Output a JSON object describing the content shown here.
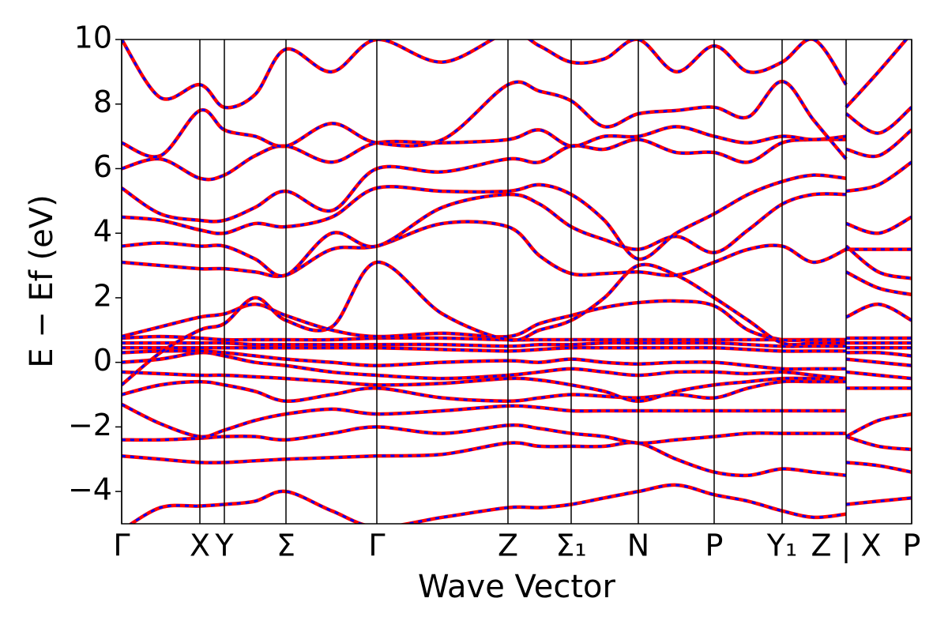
{
  "chart_data": {
    "type": "line",
    "xlabel": "Wave Vector",
    "ylabel": "E − Ef (eV)",
    "xlim": [
      0,
      1
    ],
    "ylim": [
      -5,
      10
    ],
    "yticks": [
      {
        "value": -4,
        "label": "−4"
      },
      {
        "value": -2,
        "label": "−2"
      },
      0,
      2,
      4,
      6,
      8,
      10
    ],
    "xticks": [
      {
        "value": 0,
        "label": "Γ"
      },
      {
        "value": 0.099,
        "label": "X"
      },
      {
        "value": 0.13,
        "label": "Y"
      },
      {
        "value": 0.208,
        "label": "Σ"
      },
      {
        "value": 0.323,
        "label": "Γ"
      },
      {
        "value": 0.489,
        "label": "Z"
      },
      {
        "value": 0.569,
        "label": "Σ₁"
      },
      {
        "value": 0.654,
        "label": "N"
      },
      {
        "value": 0.75,
        "label": "P"
      },
      {
        "value": 0.836,
        "label": "Y₁"
      },
      {
        "value": 0.917,
        "label": "Z | X"
      },
      {
        "value": 1.0,
        "label": "P"
      }
    ],
    "line_color": "#ff0000",
    "dash_color": "#0000ff",
    "x": [
      0,
      0.049,
      0.099,
      0.13,
      0.169,
      0.208,
      0.266,
      0.323,
      0.406,
      0.489,
      0.529,
      0.569,
      0.611,
      0.654,
      0.702,
      0.75,
      0.793,
      0.836,
      0.876,
      0.917,
      0.917,
      0.917,
      0.958,
      1.0
    ],
    "series": [
      {
        "values": [
          -5.2,
          -4.5,
          -4.45,
          -4.4,
          -4.3,
          -4.0,
          -4.6,
          -5.1,
          -4.8,
          -4.5,
          -4.5,
          -4.4,
          -4.2,
          -4.0,
          -3.8,
          -4.1,
          -4.3,
          -4.6,
          -4.8,
          -4.7,
          null,
          -4.4,
          -4.3,
          -4.2
        ]
      },
      {
        "values": [
          -2.9,
          -3.0,
          -3.1,
          -3.1,
          -3.05,
          -3.0,
          -2.95,
          -2.9,
          -2.85,
          -2.5,
          -2.6,
          -2.6,
          -2.6,
          -2.5,
          -3.0,
          -3.4,
          -3.5,
          -3.3,
          -3.4,
          -3.5,
          null,
          -3.1,
          -3.2,
          -3.4
        ]
      },
      {
        "values": [
          -2.4,
          -2.4,
          -2.35,
          -2.3,
          -2.3,
          -2.4,
          -2.2,
          -2.0,
          -2.2,
          -1.95,
          -2.05,
          -2.2,
          -2.3,
          -2.5,
          -2.4,
          -2.3,
          -2.2,
          -2.2,
          -2.2,
          -2.2,
          null,
          -2.3,
          -2.6,
          -2.7
        ]
      },
      {
        "values": [
          -1.3,
          -1.9,
          -2.3,
          -2.1,
          -1.8,
          -1.6,
          -1.45,
          -1.6,
          -1.5,
          -1.35,
          -1.4,
          -1.5,
          -1.5,
          -1.5,
          -1.5,
          -1.5,
          -1.5,
          -1.5,
          -1.5,
          -1.5,
          null,
          -2.3,
          -1.8,
          -1.6
        ]
      },
      {
        "values": [
          -1.0,
          -0.7,
          -0.6,
          -0.7,
          -0.9,
          -1.2,
          -1.0,
          -0.8,
          -1.1,
          -1.2,
          -1.1,
          -1.0,
          -1.05,
          -1.1,
          -1.0,
          -1.1,
          -0.8,
          -0.6,
          -0.6,
          -0.6,
          null,
          -0.8,
          -0.8,
          -0.8
        ]
      },
      {
        "values": [
          -0.3,
          -0.35,
          -0.4,
          -0.4,
          -0.45,
          -0.5,
          -0.6,
          -0.7,
          -0.65,
          -0.5,
          -0.55,
          -0.7,
          -0.9,
          -1.2,
          -0.9,
          -0.7,
          -0.6,
          -0.5,
          -0.5,
          -0.5,
          null,
          -0.3,
          -0.4,
          -0.5
        ]
      },
      {
        "values": [
          0.0,
          0.1,
          0.3,
          0.2,
          0.0,
          -0.1,
          -0.3,
          -0.4,
          -0.5,
          -0.4,
          -0.3,
          -0.2,
          -0.3,
          -0.4,
          -0.3,
          -0.3,
          -0.35,
          -0.3,
          -0.4,
          -0.5,
          null,
          0.1,
          0.0,
          -0.1
        ]
      },
      {
        "values": [
          0.3,
          0.35,
          0.35,
          0.3,
          0.2,
          0.1,
          0.0,
          -0.1,
          0.0,
          0.05,
          0.0,
          0.1,
          0.0,
          -0.05,
          0.0,
          0.0,
          -0.1,
          -0.2,
          -0.2,
          -0.2,
          null,
          0.3,
          0.3,
          0.2
        ]
      },
      {
        "values": [
          0.45,
          0.45,
          0.45,
          0.45,
          0.45,
          0.45,
          0.45,
          0.45,
          0.4,
          0.35,
          0.4,
          0.45,
          0.45,
          0.45,
          0.45,
          0.45,
          0.4,
          0.35,
          0.35,
          0.35,
          null,
          0.45,
          0.45,
          0.45
        ]
      },
      {
        "values": [
          0.6,
          0.6,
          0.6,
          0.6,
          0.55,
          0.55,
          0.55,
          0.55,
          0.55,
          0.5,
          0.55,
          0.55,
          0.6,
          0.6,
          0.6,
          0.6,
          0.55,
          0.5,
          0.5,
          0.5,
          null,
          0.6,
          0.6,
          0.6
        ]
      },
      {
        "values": [
          0.75,
          0.8,
          0.75,
          0.7,
          0.7,
          0.7,
          0.7,
          0.75,
          0.75,
          0.7,
          0.7,
          0.7,
          0.7,
          0.7,
          0.7,
          0.7,
          0.7,
          0.7,
          0.7,
          0.7,
          null,
          0.75,
          0.75,
          0.75
        ]
      },
      {
        "values": [
          0.8,
          1.1,
          1.4,
          1.5,
          1.8,
          1.45,
          1.0,
          0.8,
          0.9,
          0.8,
          1.2,
          1.45,
          1.7,
          1.85,
          1.9,
          1.75,
          1.0,
          0.7,
          0.7,
          0.7,
          null,
          1.4,
          1.8,
          1.3
        ]
      },
      {
        "values": [
          -0.7,
          0.3,
          1.0,
          1.2,
          2.0,
          1.3,
          1.1,
          3.1,
          1.5,
          0.7,
          1.0,
          1.3,
          2.0,
          3.0,
          2.7,
          2.0,
          1.3,
          0.6,
          0.6,
          0.6,
          null,
          2.8,
          2.3,
          2.1
        ]
      },
      {
        "values": [
          3.1,
          3.0,
          2.9,
          2.9,
          2.8,
          2.7,
          3.5,
          3.6,
          4.3,
          4.2,
          3.3,
          2.75,
          2.75,
          2.8,
          2.7,
          3.1,
          3.5,
          3.6,
          3.1,
          3.5,
          null,
          3.5,
          3.5,
          3.5
        ]
      },
      {
        "values": [
          3.6,
          3.7,
          3.6,
          3.6,
          3.2,
          2.7,
          4.0,
          3.6,
          4.8,
          5.2,
          4.9,
          4.2,
          3.8,
          3.5,
          3.9,
          3.4,
          4.1,
          4.9,
          5.2,
          5.2,
          null,
          3.6,
          2.8,
          2.6
        ]
      },
      {
        "values": [
          4.5,
          4.4,
          4.1,
          4.0,
          4.3,
          4.2,
          4.5,
          5.4,
          5.3,
          5.3,
          5.5,
          5.2,
          4.4,
          3.2,
          4.0,
          4.6,
          5.2,
          5.6,
          5.8,
          5.7,
          null,
          4.3,
          4.0,
          4.5
        ]
      },
      {
        "values": [
          5.4,
          4.6,
          4.4,
          4.4,
          4.8,
          5.3,
          4.7,
          6.0,
          5.9,
          6.3,
          6.2,
          6.7,
          6.6,
          6.9,
          6.5,
          6.5,
          6.2,
          6.8,
          6.9,
          6.9,
          null,
          5.3,
          5.5,
          6.2
        ]
      },
      {
        "values": [
          6.0,
          6.3,
          5.7,
          5.8,
          6.4,
          6.7,
          6.2,
          6.8,
          6.8,
          6.9,
          7.2,
          6.7,
          7.0,
          7.0,
          7.3,
          7.0,
          6.8,
          7.0,
          6.9,
          7.0,
          null,
          6.6,
          6.4,
          7.2
        ]
      },
      {
        "values": [
          6.8,
          6.4,
          7.8,
          7.2,
          7.0,
          6.7,
          7.4,
          6.8,
          6.9,
          8.6,
          8.4,
          8.1,
          7.3,
          7.7,
          7.8,
          7.9,
          7.6,
          8.7,
          7.5,
          6.3,
          null,
          7.7,
          7.1,
          7.9
        ]
      },
      {
        "values": [
          10.0,
          8.2,
          8.6,
          7.9,
          8.3,
          9.7,
          9.0,
          10.0,
          9.3,
          10.2,
          9.8,
          9.3,
          9.4,
          10.0,
          9.0,
          9.8,
          9.0,
          9.3,
          10.0,
          8.6,
          null,
          7.9,
          9.0,
          10.2
        ]
      }
    ]
  }
}
